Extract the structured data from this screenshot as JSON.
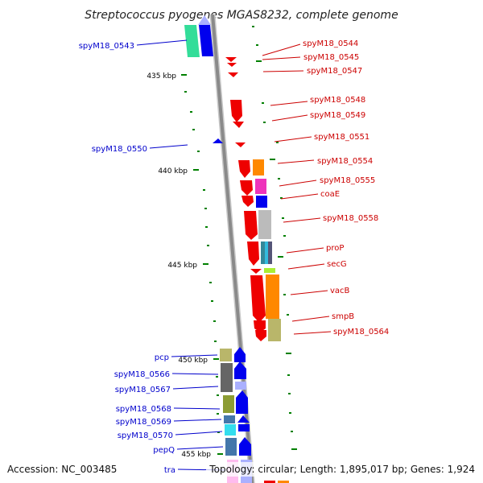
{
  "header": {
    "title": "Streptococcus pyogenes MGAS8232, complete genome"
  },
  "footer": {
    "accession": "Accession: NC_003485",
    "summary": "Topology: circular; Length: 1,895,017 bp; Genes: 1,924"
  },
  "scale": {
    "ticks": [
      {
        "label": "435 kbp"
      },
      {
        "label": "440 kbp"
      },
      {
        "label": "445 kbp"
      },
      {
        "label": "450 kbp"
      },
      {
        "label": "455 kbp"
      }
    ]
  },
  "colors": {
    "reverse_strand_label": "#0000cc",
    "forward_strand_label": "#cc0000",
    "backbone": "#888888",
    "tick": "#008000"
  },
  "genes_reverse": [
    {
      "label": "spyM18_0543"
    },
    {
      "label": "spyM18_0550"
    },
    {
      "label": "pcp"
    },
    {
      "label": "spyM18_0566"
    },
    {
      "label": "spyM18_0567"
    },
    {
      "label": "spyM18_0568"
    },
    {
      "label": "spyM18_0569"
    },
    {
      "label": "spyM18_0570"
    },
    {
      "label": "pepQ"
    },
    {
      "label": "tra"
    }
  ],
  "genes_forward": [
    {
      "label": "spyM18_0544"
    },
    {
      "label": "spyM18_0545"
    },
    {
      "label": "spyM18_0547"
    },
    {
      "label": "spyM18_0548"
    },
    {
      "label": "spyM18_0549"
    },
    {
      "label": "spyM18_0551"
    },
    {
      "label": "spyM18_0554"
    },
    {
      "label": "spyM18_0555"
    },
    {
      "label": "coaE"
    },
    {
      "label": "spyM18_0558"
    },
    {
      "label": "proP"
    },
    {
      "label": "secG"
    },
    {
      "label": "vacB"
    },
    {
      "label": "smpB"
    },
    {
      "label": "spyM18_0564"
    }
  ]
}
